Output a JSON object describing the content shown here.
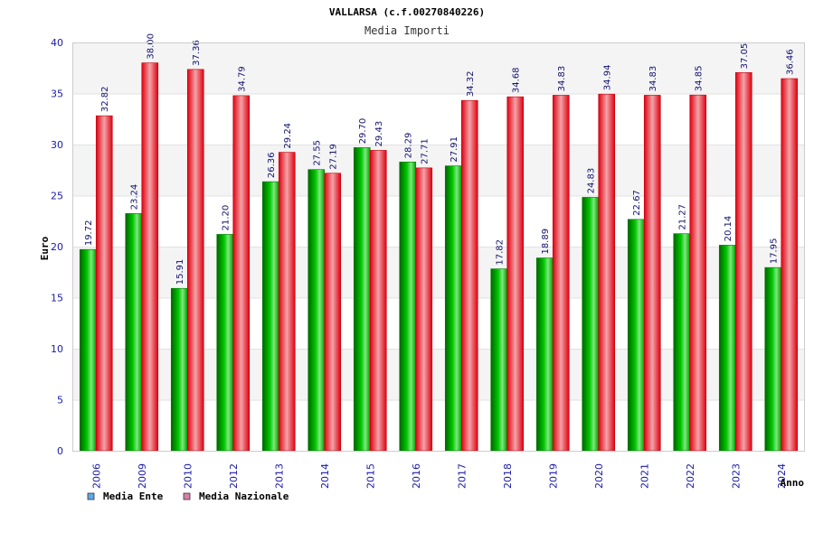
{
  "chart_data": {
    "type": "bar",
    "title": "VALLARSA (c.f.00270840226)",
    "subtitle": "Media Importi",
    "xlabel": "Anno",
    "ylabel": "Euro",
    "ylim": [
      0,
      40
    ],
    "yticks": [
      0,
      5,
      10,
      15,
      20,
      25,
      30,
      35,
      40
    ],
    "grid": true,
    "legend_position": "bottom-left",
    "categories": [
      "2006",
      "2009",
      "2010",
      "2012",
      "2013",
      "2014",
      "2015",
      "2016",
      "2017",
      "2018",
      "2019",
      "2020",
      "2021",
      "2022",
      "2023",
      "2024"
    ],
    "series": [
      {
        "name": "Media Ente",
        "color": "#00b000",
        "legend_color": "#5fa8e8",
        "values": [
          19.72,
          23.24,
          15.91,
          21.2,
          26.36,
          27.55,
          29.7,
          28.29,
          27.91,
          17.82,
          18.89,
          24.83,
          22.67,
          21.27,
          20.14,
          17.95
        ],
        "labels": [
          "19.72",
          "23.24",
          "15.91",
          "21.20",
          "26.36",
          "27.55",
          "29.70",
          "28.29",
          "27.91",
          "17.82",
          "18.89",
          "24.83",
          "22.67",
          "21.27",
          "20.14",
          "17.95"
        ]
      },
      {
        "name": "Media Nazionale",
        "color": "#e8202a",
        "legend_color": "#d77fa8",
        "values": [
          32.82,
          38.0,
          37.36,
          34.79,
          29.24,
          27.19,
          29.43,
          27.71,
          34.32,
          34.68,
          34.83,
          34.94,
          34.83,
          34.85,
          37.05,
          36.46
        ],
        "labels": [
          "32.82",
          "38.00",
          "37.36",
          "34.79",
          "29.24",
          "27.19",
          "29.43",
          "27.71",
          "34.32",
          "34.68",
          "34.83",
          "34.94",
          "34.83",
          "34.85",
          "37.05",
          "36.46"
        ]
      }
    ]
  }
}
